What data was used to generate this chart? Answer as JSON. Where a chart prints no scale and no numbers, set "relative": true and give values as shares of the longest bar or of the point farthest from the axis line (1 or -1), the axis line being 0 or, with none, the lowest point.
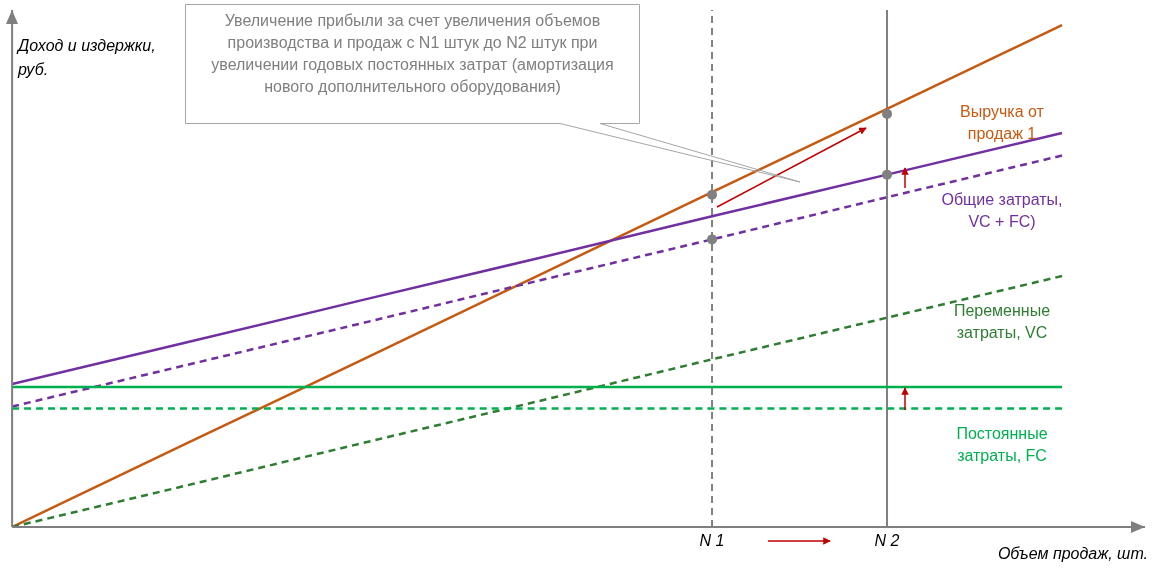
{
  "chart_data": {
    "type": "line",
    "relative": true,
    "xlabel": "Объем продаж, шт.",
    "ylabel": "Доход и издержки, руб.",
    "categories": [
      null,
      null,
      null,
      null,
      "N 1",
      "N 2",
      null
    ],
    "series": [
      {
        "name": "Выручка от продаж 1",
        "color": "#c55a11",
        "values": [
          0,
          0.167,
          0.333,
          0.5,
          0.667,
          0.833,
          1
        ]
      },
      {
        "name": "Общие затраты, VC + FC)",
        "color": "#7030a0",
        "values": [
          0.285,
          0.368,
          0.452,
          0.535,
          0.619,
          0.702,
          0.785
        ]
      },
      {
        "color": "#7030a0",
        "line_style": "dashed",
        "values": [
          0.24,
          0.323,
          0.406,
          0.49,
          0.573,
          0.657,
          0.74
        ]
      },
      {
        "name": "Переменные затраты, VC",
        "color": "#2e7d32",
        "line_style": "dashed",
        "values": [
          0,
          0.083,
          0.167,
          0.25,
          0.334,
          0.417,
          0.5
        ]
      },
      {
        "color": "#00b050",
        "values": [
          0.279,
          0.279,
          0.279,
          0.279,
          0.279,
          0.279,
          0.279
        ]
      },
      {
        "name": "Постоянные затраты, FC",
        "color": "#00b050",
        "line_style": "dashed",
        "values": [
          0.236,
          0.236,
          0.236,
          0.236,
          0.236,
          0.236,
          0.236
        ]
      },
      {
        "type": "scatter",
        "color": "#808080",
        "values": [
          null,
          null,
          null,
          null,
          0.662,
          0.823,
          null
        ]
      },
      {
        "type": "scatter",
        "color": "#808080",
        "values": [
          null,
          null,
          null,
          null,
          0.573,
          0.702,
          null
        ]
      }
    ],
    "ref_lines": [
      {
        "axis": "x",
        "value": "N 1",
        "color": "#808080",
        "line_style": "dashed"
      },
      {
        "axis": "x",
        "value": "N 2",
        "color": "#808080",
        "line_style": "solid"
      }
    ],
    "annotations": [
      "Увеличение прибыли за счет увеличения объемов производства и продаж с N1 штук до N2 штук  при увеличении годовых постоянных затрат (амортизация нового дополнительного оборудования)"
    ],
    "grid": false,
    "legend": false
  }
}
